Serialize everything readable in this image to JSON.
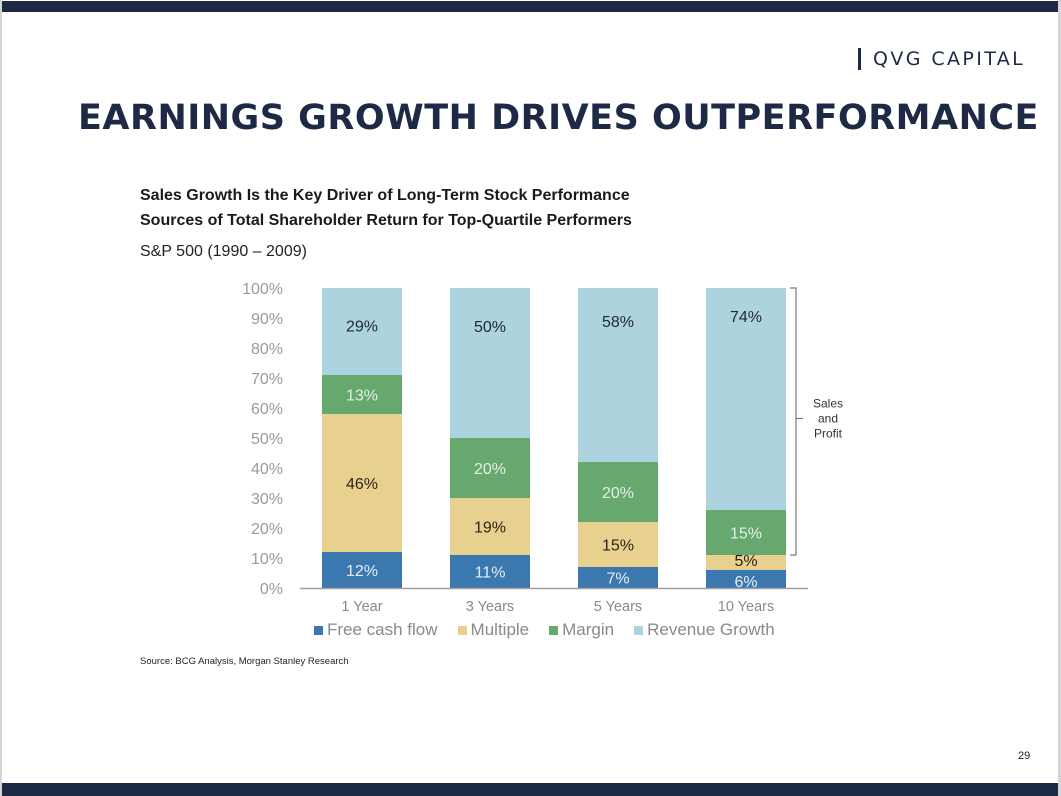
{
  "brand": {
    "name": "QVG CAPITAL"
  },
  "slide": {
    "title": "EARNINGS GROWTH DRIVES OUTPERFORMANCE",
    "page_number": "29",
    "source": "Source: BCG Analysis, Morgan Stanley Research"
  },
  "colors": {
    "navy": "#1e2a45",
    "free_cash_flow": "#3b78b0",
    "multiple": "#e8d08e",
    "margin": "#67a86f",
    "revenue_growth": "#add3de"
  },
  "chart_data": {
    "type": "bar",
    "stacked": true,
    "title": "Sales Growth Is the Key Driver of Long-Term Stock Performance",
    "subtitle": "Sources of Total Shareholder Return for Top-Quartile Performers",
    "subtitle2": "S&P 500 (1990 – 2009)",
    "xlabel": "",
    "ylabel": "",
    "ylim": [
      0,
      100
    ],
    "yticks": [
      "0%",
      "10%",
      "20%",
      "30%",
      "40%",
      "50%",
      "60%",
      "70%",
      "80%",
      "90%",
      "100%"
    ],
    "categories": [
      "1 Year",
      "3 Years",
      "5 Years",
      "10 Years"
    ],
    "series": [
      {
        "name": "Free cash flow",
        "color": "#3b78b0",
        "label_color": "#e6eef5",
        "values": [
          12,
          11,
          7,
          6
        ]
      },
      {
        "name": "Multiple",
        "color": "#e8d08e",
        "label_color": "#2a2418",
        "values": [
          46,
          19,
          15,
          5
        ]
      },
      {
        "name": "Margin",
        "color": "#67a86f",
        "label_color": "#e4f1e4",
        "values": [
          13,
          20,
          20,
          15
        ]
      },
      {
        "name": "Revenue Growth",
        "color": "#add3de",
        "label_color": "#1f2a30",
        "values": [
          29,
          50,
          58,
          74
        ]
      }
    ],
    "data_labels": [
      [
        "12%",
        "11%",
        "7%",
        "6%"
      ],
      [
        "46%",
        "19%",
        "15%",
        "5%"
      ],
      [
        "13%",
        "20%",
        "20%",
        "15%"
      ],
      [
        "29%",
        "50%",
        "58%",
        "74%"
      ]
    ],
    "annotation": {
      "text_lines": [
        "Sales",
        "and",
        "Profit"
      ],
      "bracket_category": "10 Years",
      "bracket_series": [
        "Margin",
        "Revenue Growth"
      ]
    },
    "legend_position": "bottom",
    "grid": false
  }
}
